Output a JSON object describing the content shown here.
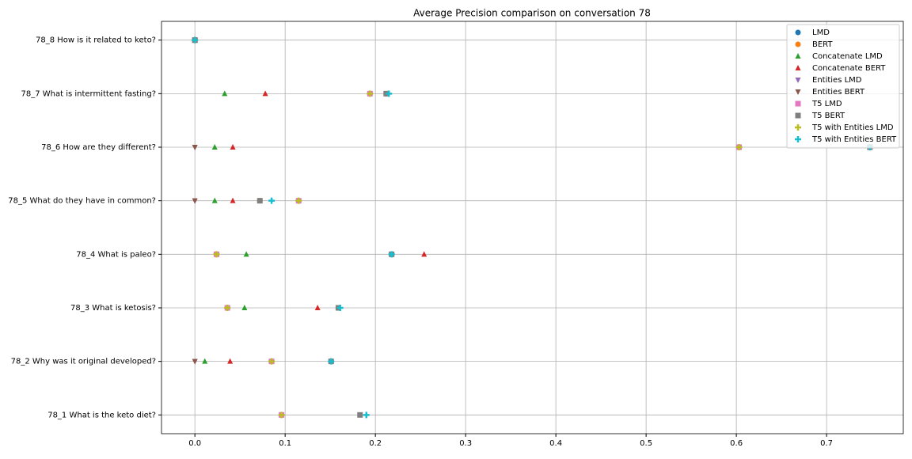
{
  "chart_data": {
    "type": "dot",
    "title": "Average Precision comparison on conversation 78",
    "categories": [
      "78_1 What is the keto diet?",
      "78_2 Why was it original developed?",
      "78_3 What is ketosis?",
      "78_4 What is paleo?",
      "78_5 What do they have in common?",
      "78_6 How are they different?",
      "78_7 What is intermittent fasting?",
      "78_8 How is it related to keto?"
    ],
    "series": [
      {
        "name": "LMD",
        "color": "#1f77b4",
        "marker": "circle",
        "values": [
          0.096,
          0.085,
          0.036,
          0.024,
          0.115,
          0.603,
          0.194,
          0
        ]
      },
      {
        "name": "BERT",
        "color": "#ff7f0e",
        "marker": "circle",
        "values": [
          0.096,
          0.085,
          0.036,
          0.218,
          0.072,
          0.748,
          0.212,
          0
        ]
      },
      {
        "name": "Concatenate LMD",
        "color": "#2ca02c",
        "marker": "triangle-up",
        "values": [
          0.096,
          0.011,
          0.055,
          0.057,
          0.022,
          0.022,
          0.033,
          0
        ]
      },
      {
        "name": "Concatenate BERT",
        "color": "#d62728",
        "marker": "triangle-up",
        "values": [
          0.096,
          0.039,
          0.136,
          0.254,
          0.042,
          0.042,
          0.078,
          0
        ]
      },
      {
        "name": "Entities LMD",
        "color": "#9467bd",
        "marker": "triangle-down",
        "values": [
          0.096,
          0,
          0.036,
          0.024,
          0,
          0,
          0.194,
          0
        ]
      },
      {
        "name": "Entities BERT",
        "color": "#8c564b",
        "marker": "triangle-down",
        "values": [
          0.096,
          0,
          0.036,
          0.218,
          0,
          0,
          0.212,
          0
        ]
      },
      {
        "name": "T5 LMD",
        "color": "#e377c2",
        "marker": "square",
        "values": [
          0.096,
          0.085,
          0.036,
          0.024,
          0.115,
          0.603,
          0.194,
          0
        ]
      },
      {
        "name": "T5 BERT",
        "color": "#7f7f7f",
        "marker": "square",
        "values": [
          0.183,
          0.151,
          0.159,
          0.218,
          0.072,
          0.748,
          0.212,
          0
        ]
      },
      {
        "name": "T5 with Entities LMD",
        "color": "#bcbd22",
        "marker": "plus",
        "values": [
          0.096,
          0.085,
          0.036,
          0.024,
          0.115,
          0.603,
          0.194,
          0
        ]
      },
      {
        "name": "T5 with Entities BERT",
        "color": "#17becf",
        "marker": "plus",
        "values": [
          0.19,
          0.151,
          0.161,
          0.218,
          0.085,
          0.748,
          0.215,
          0
        ]
      }
    ],
    "xlim": [
      -0.037,
      0.785
    ],
    "xticks": [
      {
        "value": 0,
        "label": "0.0"
      },
      0.1,
      0.2,
      0.3,
      0.4,
      0.5,
      0.6,
      0.7
    ],
    "grid": true,
    "legend": "upper right"
  }
}
